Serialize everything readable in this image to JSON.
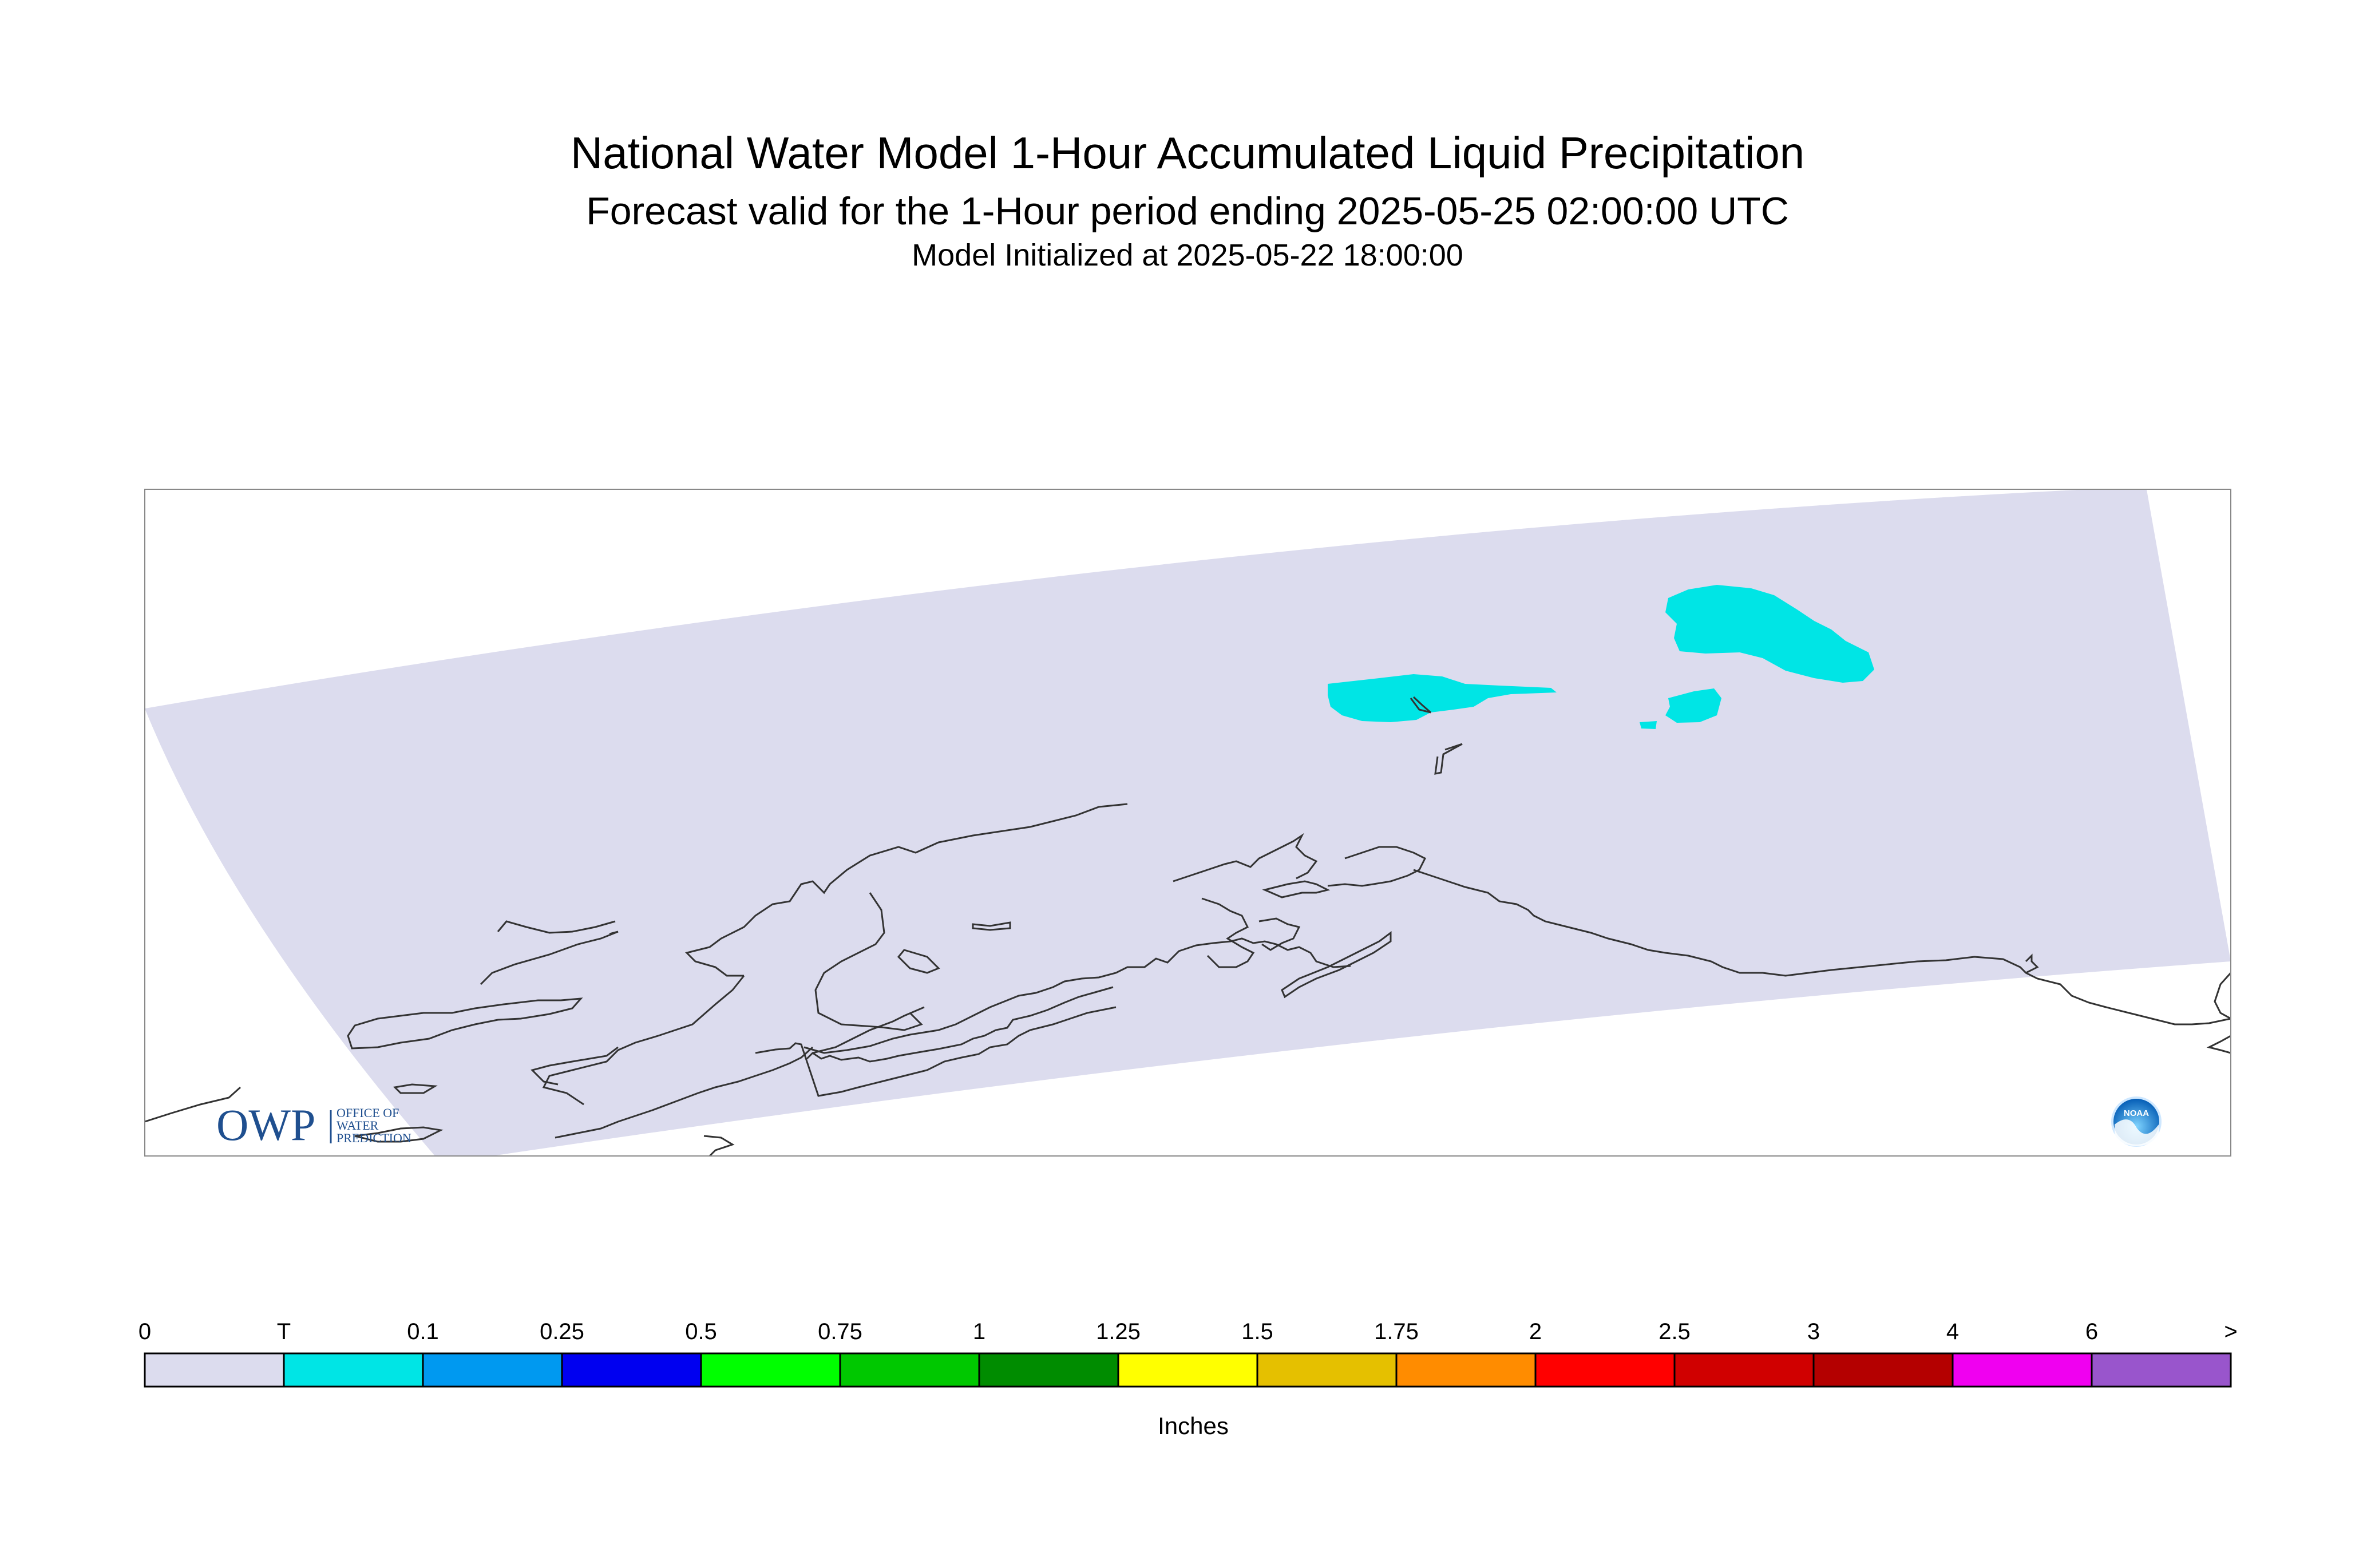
{
  "title": {
    "main": "National Water Model 1-Hour Accumulated Liquid Precipitation",
    "forecast": "Forecast valid for the 1-Hour period ending 2025-05-25 02:00:00 UTC",
    "initialized": "Model Initialized at 2025-05-22 18:00:00"
  },
  "map": {
    "domain_color": "#dcdcee",
    "coastline_color": "#333333",
    "precip_areas": [
      {
        "category": "T",
        "color": "#00e5e5"
      }
    ],
    "logos": {
      "owp": {
        "text": "OWP",
        "subtext": [
          "OFFICE OF",
          "WATER",
          "PREDICTION"
        ]
      },
      "noaa": {
        "text": "NOAA"
      }
    }
  },
  "legend": {
    "labels": [
      "0",
      "T",
      "0.1",
      "0.25",
      "0.5",
      "0.75",
      "1",
      "1.25",
      "1.5",
      "1.75",
      "2",
      "2.5",
      "3",
      "4",
      "6",
      ">"
    ],
    "colors": [
      "#dcdcee",
      "#00e5e5",
      "#0099f0",
      "#0000f0",
      "#00ff00",
      "#00c800",
      "#008c00",
      "#ffff00",
      "#e5c000",
      "#ff8c00",
      "#ff0000",
      "#d00000",
      "#b40000",
      "#f000f0",
      "#9955cc"
    ],
    "units": "Inches"
  }
}
